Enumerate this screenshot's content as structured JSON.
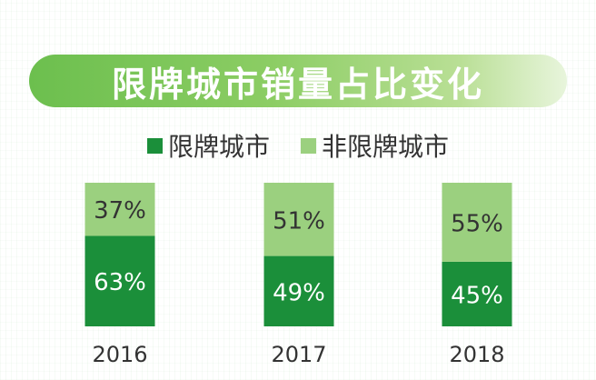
{
  "chart_data": {
    "type": "bar",
    "stacked": true,
    "percent": true,
    "title": "限牌城市销量占比变化",
    "categories": [
      "2016",
      "2017",
      "2018"
    ],
    "series": [
      {
        "name": "限牌城市",
        "values": [
          63,
          49,
          45
        ]
      },
      {
        "name": "非限牌城市",
        "values": [
          37,
          51,
          55
        ]
      }
    ],
    "value_suffix": "%",
    "ylim": [
      0,
      100
    ],
    "colors": {
      "limited": "#1b8f3a",
      "non_limited": "#9bd07f",
      "title_bg": "#7cc65a"
    },
    "grid": false,
    "legend_position": "top"
  }
}
